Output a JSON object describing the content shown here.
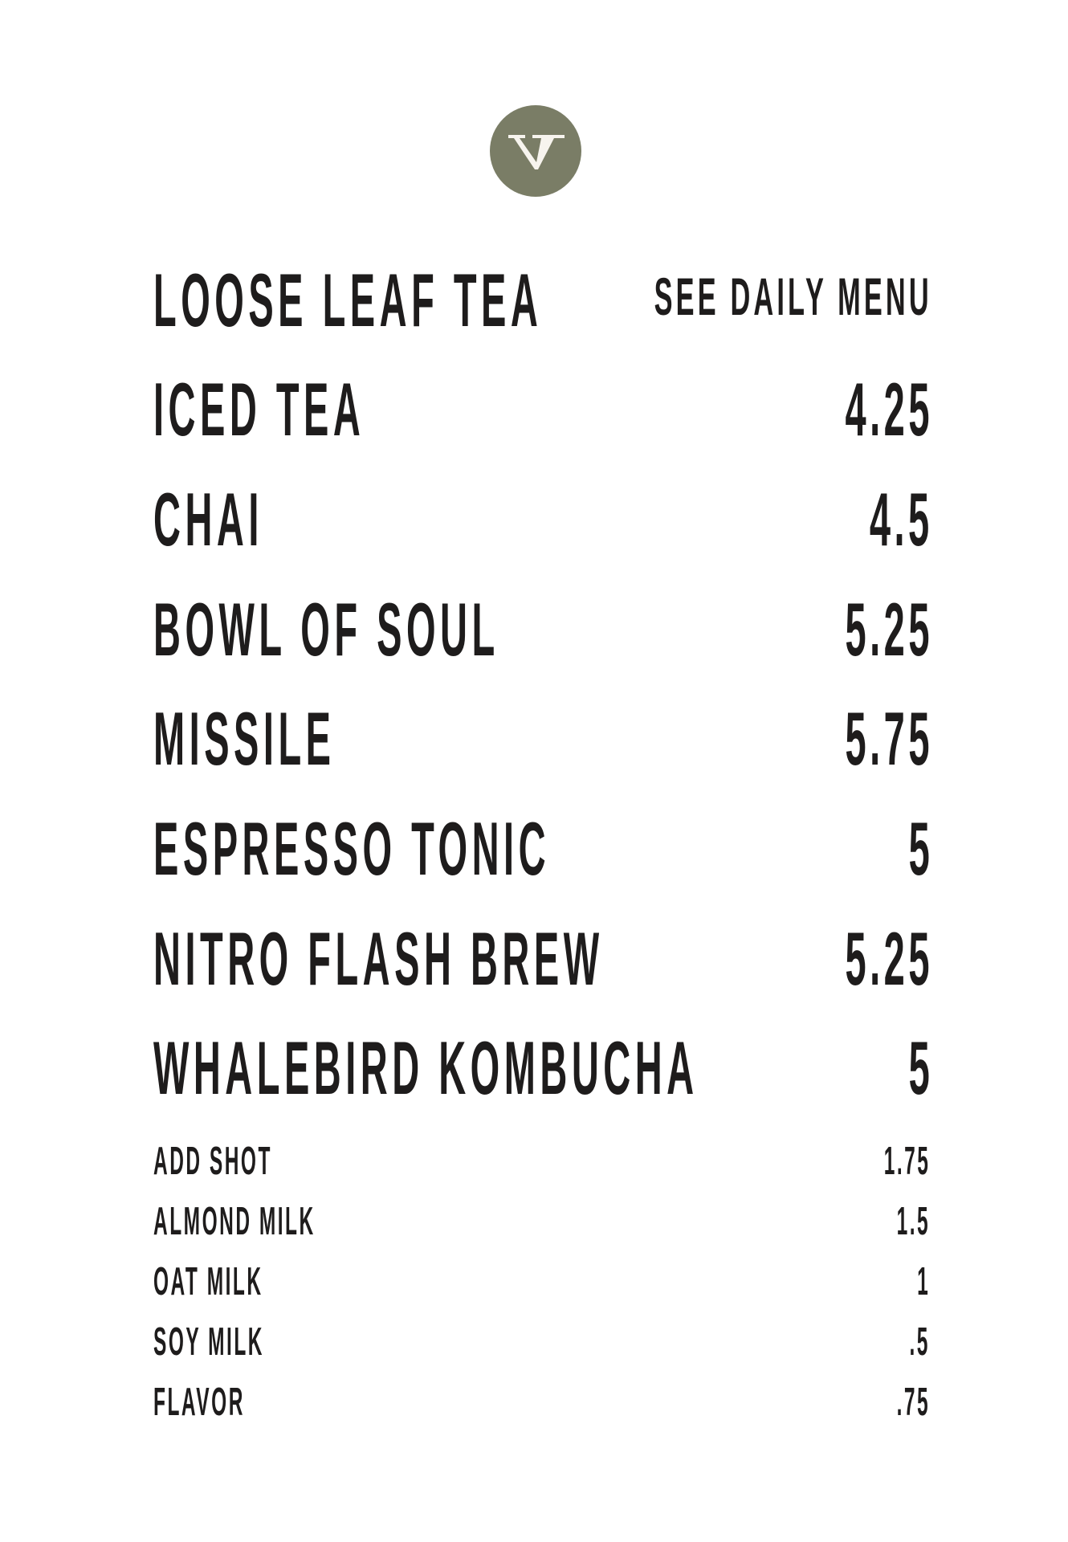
{
  "logo": {
    "text": "V",
    "color": "#7a7d66"
  },
  "drinks": [
    {
      "name": "LOOSE LEAF TEA",
      "price": "SEE DAILY MENU"
    },
    {
      "name": "ICED TEA",
      "price": "4.25"
    },
    {
      "name": "CHAI",
      "price": "4.5"
    },
    {
      "name": "BOWL OF SOUL",
      "price": "5.25"
    },
    {
      "name": "MISSILE",
      "price": "5.75"
    },
    {
      "name": "ESPRESSO TONIC",
      "price": "5"
    },
    {
      "name": "NITRO FLASH BREW",
      "price": "5.25"
    },
    {
      "name": "WHALEBIRD KOMBUCHA",
      "price": "5"
    }
  ],
  "addons": [
    {
      "name": "ADD SHOT",
      "price": "1.75"
    },
    {
      "name": "ALMOND MILK",
      "price": "1.5"
    },
    {
      "name": "OAT MILK",
      "price": "1"
    },
    {
      "name": "SOY MILK",
      "price": ".5"
    },
    {
      "name": "FLAVOR",
      "price": ".75"
    }
  ]
}
